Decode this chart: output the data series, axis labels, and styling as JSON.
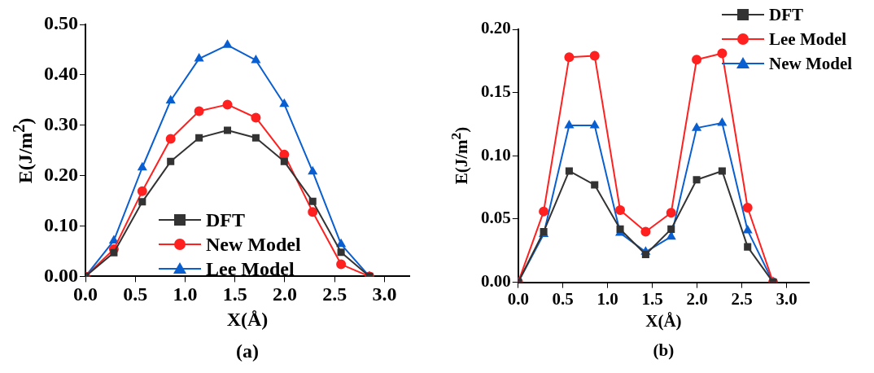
{
  "chart_data": [
    {
      "type": "line",
      "xlabel": "X(Å)",
      "ylabel": "E(J/m$^{2}$)",
      "annotations": [
        "(a)"
      ],
      "x": [
        0,
        0.285,
        0.57,
        0.855,
        1.14,
        1.425,
        1.71,
        1.995,
        2.28,
        2.565,
        2.85
      ],
      "xlim": [
        0,
        3.25
      ],
      "xticks": [
        {
          "value": 0,
          "label": "0.0"
        },
        {
          "value": 0.5,
          "label": "0.5"
        },
        {
          "value": 1,
          "label": "1.0"
        },
        {
          "value": 1.5,
          "label": "1.5"
        },
        {
          "value": 2,
          "label": "2.0"
        },
        {
          "value": 2.5,
          "label": "2.5"
        },
        {
          "value": 3,
          "label": "3.0"
        }
      ],
      "ylim": [
        0,
        0.5
      ],
      "yticks": [
        {
          "value": 0,
          "label": "0.00"
        },
        {
          "value": 0.1,
          "label": "0.10"
        },
        {
          "value": 0.2,
          "label": "0.20"
        },
        {
          "value": 0.3,
          "label": "0.30"
        },
        {
          "value": 0.4,
          "label": "0.40"
        },
        {
          "value": 0.5,
          "label": "0.50"
        }
      ],
      "grid": false,
      "legend": "bottom",
      "line_style": "solid",
      "series": [
        {
          "name": "DFT",
          "color": "#333333",
          "marker": "square",
          "values": [
            0,
            0.047,
            0.148,
            0.228,
            0.275,
            0.29,
            0.275,
            0.228,
            0.149,
            0.048,
            0
          ]
        },
        {
          "name": "New Model",
          "color": "#ff2020",
          "marker": "circle",
          "values": [
            0,
            0.054,
            0.169,
            0.273,
            0.328,
            0.341,
            0.315,
            0.242,
            0.128,
            0.024,
            0
          ]
        },
        {
          "name": "Lee Model",
          "color": "#0a5fd0",
          "marker": "triangle",
          "values": [
            0,
            0.071,
            0.216,
            0.349,
            0.432,
            0.459,
            0.429,
            0.342,
            0.208,
            0.064,
            0
          ]
        }
      ]
    },
    {
      "type": "line",
      "xlabel": "X(Å)",
      "ylabel": "E(J/m$^{2}$)",
      "annotations": [
        "(b)"
      ],
      "x": [
        0,
        0.285,
        0.57,
        0.855,
        1.14,
        1.425,
        1.71,
        1.995,
        2.28,
        2.565,
        2.85
      ],
      "xlim": [
        0,
        3.25
      ],
      "xticks": [
        {
          "value": 0,
          "label": "0.0"
        },
        {
          "value": 0.5,
          "label": "0.5"
        },
        {
          "value": 1,
          "label": "1.0"
        },
        {
          "value": 1.5,
          "label": "1.5"
        },
        {
          "value": 2,
          "label": "2.0"
        },
        {
          "value": 2.5,
          "label": "2.5"
        },
        {
          "value": 3,
          "label": "3.0"
        }
      ],
      "ylim": [
        0,
        0.2
      ],
      "yticks": [
        {
          "value": 0,
          "label": "0.00"
        },
        {
          "value": 0.05,
          "label": "0.05"
        },
        {
          "value": 0.1,
          "label": "0.10"
        },
        {
          "value": 0.15,
          "label": "0.15"
        },
        {
          "value": 0.2,
          "label": "0.20"
        }
      ],
      "grid": false,
      "legend": "top right",
      "line_style": "solid",
      "series": [
        {
          "name": "DFT",
          "color": "#333333",
          "marker": "square",
          "values": [
            0,
            0.04,
            0.088,
            0.077,
            0.042,
            0.022,
            0.042,
            0.081,
            0.088,
            0.028,
            0
          ]
        },
        {
          "name": "Lee Model",
          "color": "#ff2020",
          "marker": "circle",
          "values": [
            0,
            0.056,
            0.178,
            0.179,
            0.057,
            0.04,
            0.055,
            0.176,
            0.181,
            0.059,
            0
          ]
        },
        {
          "name": "New Model",
          "color": "#0a5fd0",
          "marker": "triangle",
          "values": [
            0,
            0.038,
            0.124,
            0.124,
            0.039,
            0.024,
            0.036,
            0.122,
            0.126,
            0.041,
            0
          ]
        }
      ]
    }
  ]
}
